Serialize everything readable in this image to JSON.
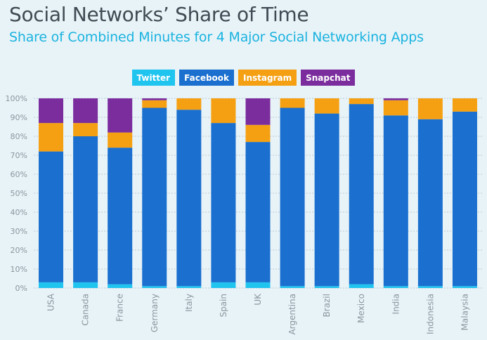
{
  "header": {
    "title": "Social Networks’ Share of Time",
    "subtitle": "Share of Combined Minutes for 4 Major Social Networking Apps"
  },
  "colors": {
    "Twitter": "#1fc4ef",
    "Facebook": "#1a6fcf",
    "Instagram": "#f5a012",
    "Snapchat": "#7b2d9e",
    "grid": "#b9cbd4",
    "axis_text": "#8a969d"
  },
  "chart_data": {
    "type": "bar",
    "stacked": true,
    "orientation": "vertical",
    "categories": [
      "USA",
      "Canada",
      "France",
      "Germany",
      "Italy",
      "Spain",
      "UK",
      "Argentina",
      "Brazil",
      "Mexico",
      "India",
      "Indonesia",
      "Malaysia"
    ],
    "series": [
      {
        "name": "Twitter",
        "values": [
          3,
          3,
          2,
          1,
          1,
          3,
          3,
          1,
          1,
          2,
          1,
          1,
          1
        ]
      },
      {
        "name": "Facebook",
        "values": [
          69,
          77,
          72,
          94,
          93,
          84,
          74,
          94,
          91,
          95,
          90,
          88,
          92
        ]
      },
      {
        "name": "Instagram",
        "values": [
          15,
          7,
          8,
          4,
          6,
          13,
          9,
          5,
          8,
          3,
          8,
          11,
          7
        ]
      },
      {
        "name": "Snapchat",
        "values": [
          13,
          13,
          18,
          1,
          0,
          0,
          14,
          0,
          0,
          0,
          1,
          0,
          0
        ]
      }
    ],
    "yticks": [
      "0%",
      "10%",
      "20%",
      "30%",
      "40%",
      "50%",
      "60%",
      "70%",
      "80%",
      "90%",
      "100%"
    ],
    "ylim": [
      0,
      100
    ],
    "grid": true,
    "legend": "top-center",
    "xlabel": "",
    "ylabel": ""
  }
}
